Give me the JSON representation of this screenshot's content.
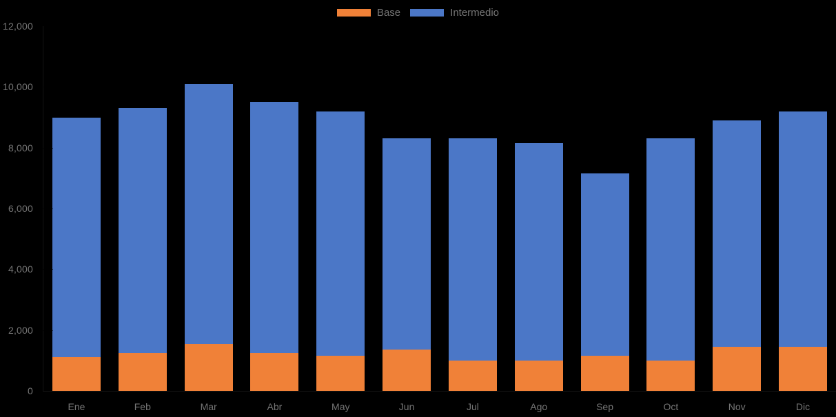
{
  "chart_data": {
    "type": "bar",
    "stacked": true,
    "title": "",
    "xlabel": "",
    "ylabel": "",
    "categories": [
      "Ene",
      "Feb",
      "Mar",
      "Abr",
      "May",
      "Jun",
      "Jul",
      "Ago",
      "Sep",
      "Oct",
      "Nov",
      "Dic"
    ],
    "series": [
      {
        "name": "Base",
        "color": "#F08138",
        "values": [
          1100,
          1250,
          1550,
          1250,
          1150,
          1350,
          1000,
          1000,
          1150,
          1000,
          1450,
          1450
        ]
      },
      {
        "name": "Intermedio",
        "color": "#4B77C7",
        "values": [
          7900,
          8050,
          8550,
          8250,
          8050,
          6950,
          7300,
          7150,
          6000,
          7300,
          7450,
          7750
        ]
      }
    ],
    "stack_totals": [
      9000,
      9300,
      10100,
      9500,
      9200,
      8300,
      8300,
      8150,
      7150,
      8300,
      8900,
      9200
    ],
    "ylim": [
      0,
      12000
    ],
    "y_tick_step": 2000,
    "y_tick_labels": [
      "0",
      "2,000",
      "4,000",
      "6,000",
      "8,000",
      "10,000",
      "12,000"
    ],
    "grid": false,
    "legend_position": "top-center",
    "background_color": "#000000",
    "axis_text_color": "#767676"
  }
}
